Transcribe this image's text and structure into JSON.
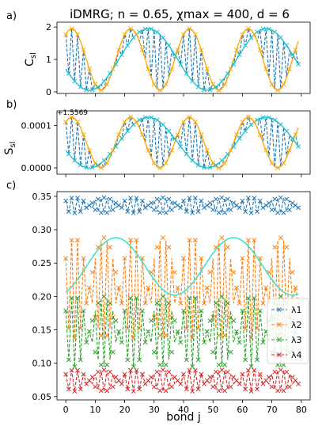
{
  "figure": {
    "title": "iDMRG; n = 0.65, χmax = 400, d = 6",
    "xlabel": "bond j"
  },
  "colors": {
    "lambda1": "#1f77b4",
    "lambda2": "#ff7f0e",
    "lambda3": "#2ca02c",
    "lambda4": "#d62728",
    "envelope_orange": "#ffa500",
    "envelope_teal": "#17becf",
    "envelope_cyan": "#40e0d0"
  },
  "chart_data": [
    {
      "panel": "a)",
      "type": "line",
      "ylabel": "C_sl",
      "xlim": [
        -3,
        83
      ],
      "ylim": [
        -0.05,
        2.15
      ],
      "yticks": [
        "0",
        "1",
        "2"
      ],
      "series": [
        {
          "color_key": "lambda1",
          "style": "dashed",
          "marker": "x",
          "description": "rapidly alternating between ~1.9 and ~0.1 (period-2)",
          "x_range": [
            0,
            79
          ]
        }
      ],
      "envelopes": [
        {
          "color_key": "envelope_orange",
          "period": 20,
          "amplitude": 0.95,
          "center": 1.0
        },
        {
          "color_key": "envelope_teal",
          "period": 40,
          "amplitude": 0.95,
          "center": 1.0
        }
      ]
    },
    {
      "panel": "b)",
      "type": "line",
      "ylabel": "S_sl",
      "offset_label": "+1.5569",
      "xlim": [
        -3,
        83
      ],
      "ylim": [
        -1.5e-05,
        0.000135
      ],
      "yticks": [
        "0.0000",
        "0.0001"
      ],
      "series": [
        {
          "color_key": "lambda1",
          "style": "dashed",
          "marker": "x",
          "description": "period-2 oscillation between ~0 and ~0.00013",
          "x_range": [
            0,
            79
          ]
        }
      ],
      "envelopes": [
        {
          "color_key": "envelope_orange",
          "period": 20,
          "amplitude": 6e-05,
          "center": 6e-05
        },
        {
          "color_key": "envelope_teal",
          "period": 40,
          "amplitude": 6e-05,
          "center": 6e-05
        }
      ]
    },
    {
      "panel": "c)",
      "type": "line",
      "xlim": [
        -3,
        83
      ],
      "ylim": [
        0.045,
        0.357
      ],
      "xticks": [
        "0",
        "10",
        "20",
        "30",
        "40",
        "50",
        "60",
        "70",
        "80"
      ],
      "yticks": [
        "0.05",
        "0.10",
        "0.15",
        "0.20",
        "0.25",
        "0.30",
        "0.35"
      ],
      "legend": {
        "placement": "right",
        "entries": [
          "λ1",
          "λ2",
          "λ3",
          "λ4"
        ]
      },
      "series": [
        {
          "name": "λ1",
          "color_key": "lambda1",
          "style": "dashed",
          "marker": "x",
          "low": 0.325,
          "high": 0.348
        },
        {
          "name": "λ2",
          "color_key": "lambda2",
          "style": "dashed",
          "marker": "x",
          "low": 0.138,
          "high": 0.288
        },
        {
          "name": "λ3",
          "color_key": "lambda3",
          "style": "dashed",
          "marker": "x",
          "low": 0.095,
          "high": 0.2
        },
        {
          "name": "λ4",
          "color_key": "lambda4",
          "style": "dashed",
          "marker": "x",
          "low": 0.058,
          "high": 0.09
        }
      ]
    }
  ]
}
